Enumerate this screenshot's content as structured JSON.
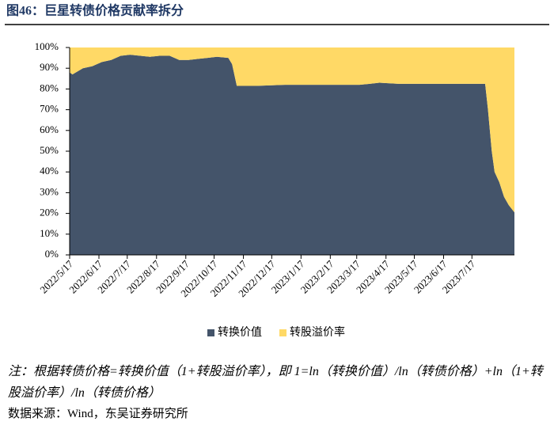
{
  "chart_data": {
    "type": "stacked-area",
    "title": "图46：巨星转债价格贡献率拆分",
    "x": [
      "2022/5/17",
      "2022/5/20",
      "2022/5/31",
      "2022/6/10",
      "2022/6/20",
      "2022/6/30",
      "2022/7/10",
      "2022/7/20",
      "2022/7/31",
      "2022/8/10",
      "2022/8/20",
      "2022/8/31",
      "2022/9/10",
      "2022/9/20",
      "2022/9/30",
      "2022/10/10",
      "2022/10/20",
      "2022/11/1",
      "2022/11/5",
      "2022/11/10",
      "2022/11/30",
      "2022/12/31",
      "2023/1/31",
      "2023/2/28",
      "2023/3/20",
      "2023/3/31",
      "2023/4/10",
      "2023/4/30",
      "2023/5/31",
      "2023/6/30",
      "2023/7/31",
      "2023/8/3",
      "2023/8/7",
      "2023/8/10",
      "2023/8/15",
      "2023/8/20",
      "2023/8/25",
      "2023/8/31"
    ],
    "series": [
      {
        "name": "转换价值",
        "color": "#44546a",
        "values": [
          88,
          87,
          90,
          91,
          93,
          94,
          96,
          96.5,
          96,
          95.5,
          96,
          96,
          94,
          94,
          94.5,
          95,
          95.5,
          95,
          92,
          81.5,
          81.5,
          82,
          82,
          82,
          82,
          82.5,
          83,
          82.5,
          82.5,
          82.5,
          82.5,
          70,
          50,
          40,
          35,
          28,
          24,
          20.5
        ]
      },
      {
        "name": "转股溢价率",
        "color": "#ffd966",
        "values": [
          12,
          13,
          10,
          9,
          7,
          6,
          4,
          3.5,
          4,
          4.5,
          4,
          4,
          6,
          6,
          5.5,
          5,
          4.5,
          5,
          8,
          18.5,
          18.5,
          18,
          18,
          18,
          18,
          17.5,
          17,
          17.5,
          17.5,
          17.5,
          17.5,
          30,
          50,
          60,
          65,
          72,
          76,
          79.5
        ]
      }
    ],
    "xlim": [
      "2022/5/17",
      "2023/8/31"
    ],
    "xticks": [
      "2022/5/17",
      "2022/6/17",
      "2022/7/17",
      "2022/8/17",
      "2022/9/17",
      "2022/10/17",
      "2022/11/17",
      "2022/12/17",
      "2023/1/17",
      "2023/2/17",
      "2023/3/17",
      "2023/4/17",
      "2023/5/17",
      "2023/6/17",
      "2023/7/17"
    ],
    "ylim": [
      0,
      100
    ],
    "yticks": [
      {
        "value": 0,
        "label": "0%"
      },
      {
        "value": 10,
        "label": "10%"
      },
      {
        "value": 20,
        "label": "20%"
      },
      {
        "value": 30,
        "label": "30%"
      },
      {
        "value": 40,
        "label": "40%"
      },
      {
        "value": 50,
        "label": "50%"
      },
      {
        "value": 60,
        "label": "60%"
      },
      {
        "value": 70,
        "label": "70%"
      },
      {
        "value": 80,
        "label": "80%"
      },
      {
        "value": 90,
        "label": "90%"
      },
      {
        "value": 100,
        "label": "100%"
      }
    ],
    "legend": "bottom",
    "note": "注：根据转债价格=转换价值（1+转股溢价率），即 1=ln（转换价值）/ln（转债价格）+ln（1+转股溢价率）/ln（转债价格）",
    "source": "数据来源：Wind，东吴证券研究所"
  }
}
